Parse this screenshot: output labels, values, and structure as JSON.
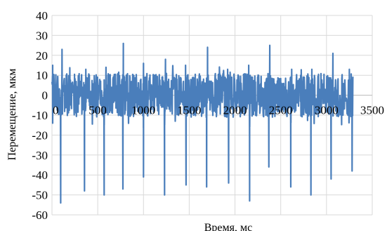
{
  "chart_data": {
    "type": "line",
    "title": "",
    "xlabel": "Время, мс",
    "ylabel": "Перемещение, мкм",
    "xlim": [
      0,
      3500
    ],
    "ylim": [
      -60,
      40
    ],
    "xticks": [
      0,
      500,
      1000,
      1500,
      2000,
      2500,
      3000,
      3500
    ],
    "yticks": [
      -60,
      -50,
      -40,
      -30,
      -20,
      -10,
      0,
      10,
      20,
      30,
      40
    ],
    "grid": true,
    "legend": "none",
    "series_color": "#4a7ebb",
    "x_end": 3290,
    "peaks": [
      {
        "x": 8,
        "y": 15
      },
      {
        "x": 110,
        "y": 23
      },
      {
        "x": 370,
        "y": 13
      },
      {
        "x": 590,
        "y": 14
      },
      {
        "x": 780,
        "y": 26
      },
      {
        "x": 1000,
        "y": 16
      },
      {
        "x": 1240,
        "y": 18
      },
      {
        "x": 1460,
        "y": 15
      },
      {
        "x": 1700,
        "y": 24
      },
      {
        "x": 1920,
        "y": 13
      },
      {
        "x": 2150,
        "y": 15
      },
      {
        "x": 2380,
        "y": 25
      },
      {
        "x": 2620,
        "y": 13
      },
      {
        "x": 2840,
        "y": 13
      },
      {
        "x": 3070,
        "y": 21
      },
      {
        "x": 3250,
        "y": 13
      }
    ],
    "troughs": [
      {
        "x": 8,
        "y": -14
      },
      {
        "x": 95,
        "y": -54
      },
      {
        "x": 355,
        "y": -48
      },
      {
        "x": 570,
        "y": -50
      },
      {
        "x": 775,
        "y": -47
      },
      {
        "x": 1000,
        "y": -41
      },
      {
        "x": 1230,
        "y": -50
      },
      {
        "x": 1465,
        "y": -45
      },
      {
        "x": 1690,
        "y": -46
      },
      {
        "x": 1930,
        "y": -44
      },
      {
        "x": 2160,
        "y": -53
      },
      {
        "x": 2370,
        "y": -36
      },
      {
        "x": 2610,
        "y": -46
      },
      {
        "x": 2830,
        "y": -50
      },
      {
        "x": 3050,
        "y": -42
      },
      {
        "x": 3280,
        "y": -38
      }
    ]
  }
}
